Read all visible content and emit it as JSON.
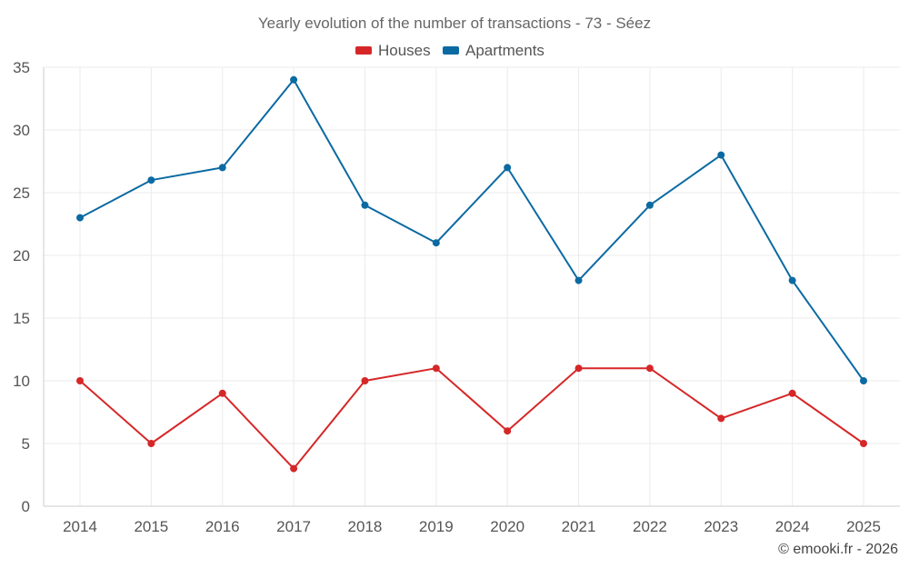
{
  "chart_data": {
    "type": "line",
    "title": "Yearly evolution of the number of transactions - 73 - Séez",
    "categories": [
      "2014",
      "2015",
      "2016",
      "2017",
      "2018",
      "2019",
      "2020",
      "2021",
      "2022",
      "2023",
      "2024",
      "2025"
    ],
    "series": [
      {
        "name": "Houses",
        "color": "#d62728",
        "values": [
          10,
          5,
          9,
          3,
          10,
          11,
          6,
          11,
          11,
          7,
          9,
          5
        ]
      },
      {
        "name": "Apartments",
        "color": "#0b6aa2",
        "values": [
          23,
          26,
          27,
          34,
          24,
          21,
          27,
          18,
          24,
          28,
          18,
          10
        ]
      }
    ],
    "ylim": [
      0,
      35
    ],
    "yticks": [
      0,
      5,
      10,
      15,
      20,
      25,
      30,
      35
    ],
    "xlabel": "",
    "ylabel": "",
    "grid": true,
    "legend_position": "top-center"
  },
  "credit": "© emooki.fr - 2026"
}
